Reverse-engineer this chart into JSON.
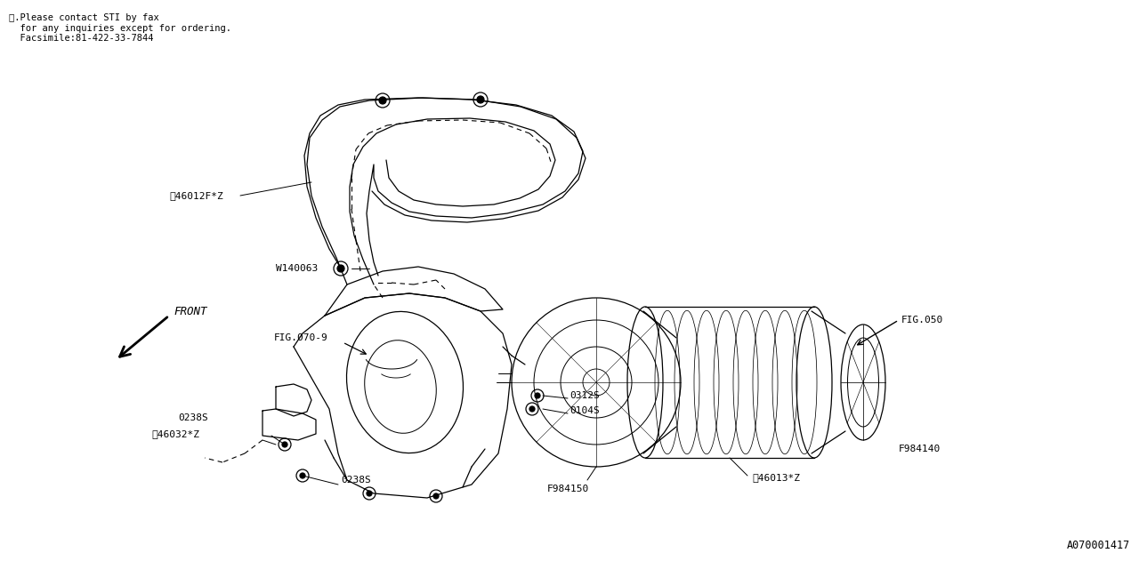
{
  "bg_color": "#ffffff",
  "line_color": "#000000",
  "fig_width": 12.8,
  "fig_height": 6.4,
  "dpi": 100,
  "footnote_lines": [
    "※.Please contact STI by fax",
    "  for any inquiries except for ordering.",
    "  Facsimile:81-422-33-7844"
  ],
  "doc_number": "A070001417"
}
